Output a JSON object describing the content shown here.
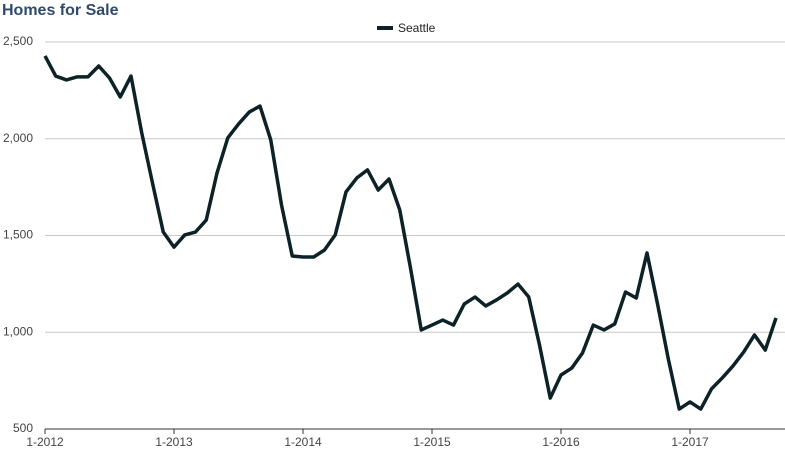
{
  "chart_data": {
    "type": "line",
    "title": "Homes for Sale",
    "x": [
      "1-2012",
      "2-2012",
      "3-2012",
      "4-2012",
      "5-2012",
      "6-2012",
      "7-2012",
      "8-2012",
      "9-2012",
      "10-2012",
      "11-2012",
      "12-2012",
      "1-2013",
      "2-2013",
      "3-2013",
      "4-2013",
      "5-2013",
      "6-2013",
      "7-2013",
      "8-2013",
      "9-2013",
      "10-2013",
      "11-2013",
      "12-2013",
      "1-2014",
      "2-2014",
      "3-2014",
      "4-2014",
      "5-2014",
      "6-2014",
      "7-2014",
      "8-2014",
      "9-2014",
      "10-2014",
      "11-2014",
      "12-2014",
      "1-2015",
      "2-2015",
      "3-2015",
      "4-2015",
      "5-2015",
      "6-2015",
      "7-2015",
      "8-2015",
      "9-2015",
      "10-2015",
      "11-2015",
      "12-2015",
      "1-2016",
      "2-2016",
      "3-2016",
      "4-2016",
      "5-2016",
      "6-2016",
      "7-2016",
      "8-2016",
      "9-2016",
      "10-2016",
      "11-2016",
      "12-2016",
      "1-2017",
      "2-2017",
      "3-2017",
      "4-2017",
      "5-2017",
      "6-2017",
      "7-2017",
      "8-2017",
      "9-2017"
    ],
    "series": [
      {
        "name": "Seattle",
        "color": "#0d2226",
        "values": [
          2428,
          2324,
          2304,
          2320,
          2320,
          2376,
          2314,
          2216,
          2324,
          2030,
          1771,
          1518,
          1440,
          1503,
          1518,
          1580,
          1823,
          2004,
          2076,
          2138,
          2169,
          1994,
          1658,
          1394,
          1389,
          1389,
          1425,
          1503,
          1725,
          1797,
          1839,
          1735,
          1792,
          1632,
          1332,
          1012,
          1037,
          1063,
          1037,
          1146,
          1182,
          1136,
          1167,
          1203,
          1249,
          1182,
          934,
          660,
          779,
          815,
          893,
          1037,
          1012,
          1043,
          1208,
          1177,
          1410,
          1141,
          857,
          603,
          640,
          603,
          707,
          764,
          826,
          898,
          986,
          908,
          1074
        ]
      }
    ],
    "xticks": [
      "1-2012",
      "1-2013",
      "1-2014",
      "1-2015",
      "1-2016",
      "1-2017"
    ],
    "ylim": [
      500,
      2500
    ],
    "yticks": [
      {
        "value": 500,
        "label": "500"
      },
      {
        "value": 1000,
        "label": "1,000"
      },
      {
        "value": 1500,
        "label": "1,500"
      },
      {
        "value": 2000,
        "label": "2,000"
      },
      {
        "value": 2500,
        "label": "2,500"
      }
    ],
    "grid": true,
    "legend": "top"
  }
}
